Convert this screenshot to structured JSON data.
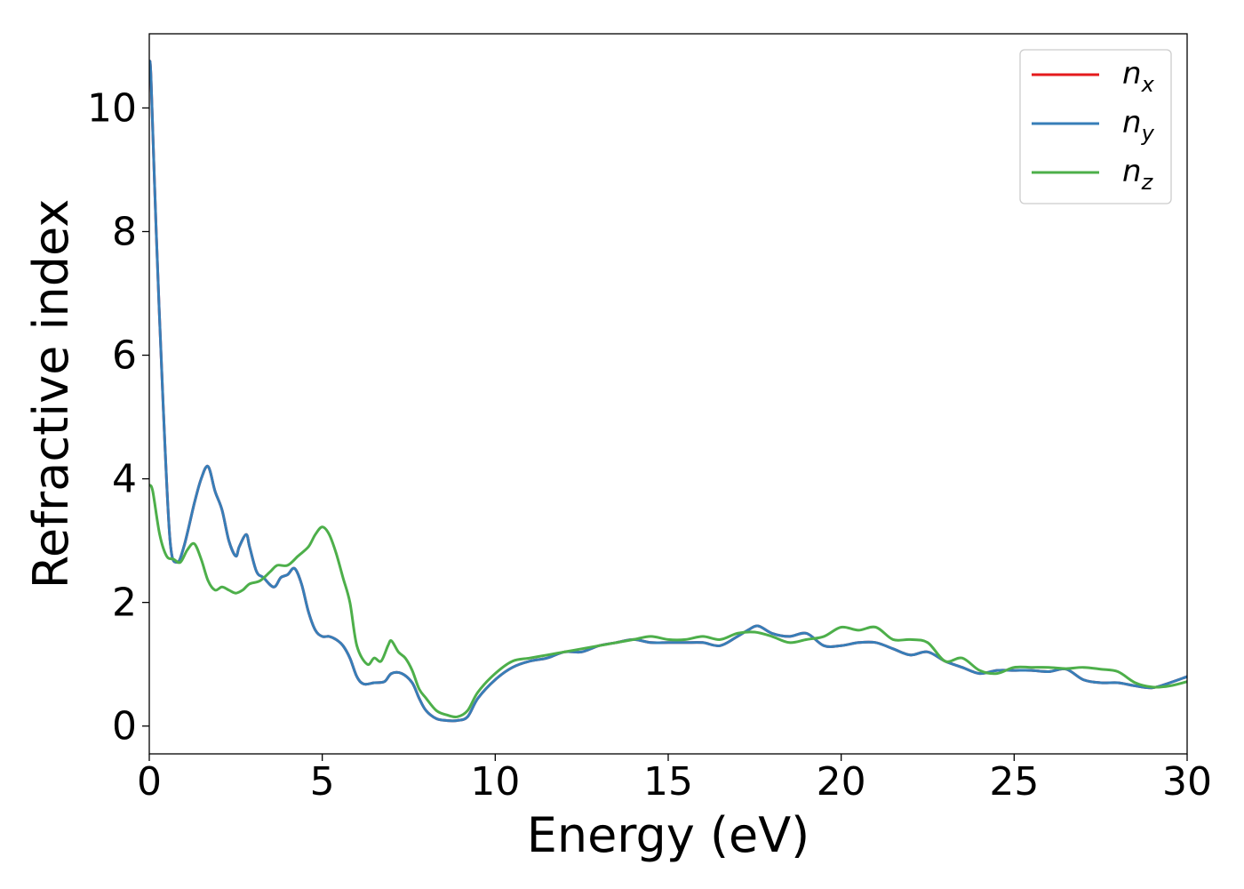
{
  "chart_data": {
    "type": "line",
    "xlabel": "Energy (eV)",
    "ylabel": "Refractive index",
    "xlim": [
      0,
      30
    ],
    "ylim": [
      -0.45,
      11.2
    ],
    "xticks": [
      0,
      5,
      10,
      15,
      20,
      25,
      30
    ],
    "yticks": [
      0,
      2,
      4,
      6,
      8,
      10
    ],
    "grid": false,
    "legend_position": "top-right",
    "series": [
      {
        "name": "n_x",
        "label_base": "n",
        "label_sub": "x",
        "color": "#e41a1c",
        "x": [
          0,
          0.05,
          0.2,
          0.4,
          0.6,
          0.8,
          1.0,
          1.3,
          1.5,
          1.7,
          1.9,
          2.1,
          2.3,
          2.5,
          2.6,
          2.8,
          2.9,
          3.1,
          3.3,
          3.6,
          3.8,
          4.0,
          4.2,
          4.4,
          4.6,
          4.8,
          5.0,
          5.2,
          5.4,
          5.6,
          5.8,
          6.0,
          6.2,
          6.5,
          6.8,
          7.0,
          7.3,
          7.6,
          7.8,
          8.0,
          8.3,
          8.6,
          8.9,
          9.2,
          9.5,
          10.0,
          10.5,
          11.0,
          11.5,
          12.0,
          12.5,
          13.0,
          13.5,
          14.0,
          14.5,
          15.0,
          15.5,
          16.0,
          16.5,
          17.0,
          17.3,
          17.6,
          18.0,
          18.5,
          19.0,
          19.5,
          20.0,
          20.5,
          21.0,
          21.5,
          22.0,
          22.5,
          23.0,
          23.5,
          24.0,
          24.5,
          25.0,
          25.5,
          26.0,
          26.5,
          27.0,
          27.5,
          28.0,
          28.5,
          29.0,
          29.5,
          30.0
        ],
        "values": [
          10.7,
          10.5,
          8.0,
          5.2,
          3.0,
          2.65,
          2.9,
          3.6,
          4.0,
          4.2,
          3.8,
          3.5,
          3.0,
          2.75,
          2.9,
          3.1,
          2.9,
          2.5,
          2.4,
          2.25,
          2.4,
          2.45,
          2.55,
          2.3,
          1.85,
          1.55,
          1.45,
          1.45,
          1.4,
          1.3,
          1.1,
          0.8,
          0.68,
          0.7,
          0.72,
          0.85,
          0.85,
          0.7,
          0.45,
          0.25,
          0.12,
          0.09,
          0.09,
          0.15,
          0.45,
          0.75,
          0.95,
          1.05,
          1.1,
          1.2,
          1.2,
          1.3,
          1.35,
          1.4,
          1.35,
          1.35,
          1.35,
          1.35,
          1.3,
          1.45,
          1.55,
          1.62,
          1.5,
          1.45,
          1.5,
          1.3,
          1.3,
          1.35,
          1.35,
          1.25,
          1.15,
          1.2,
          1.05,
          0.95,
          0.85,
          0.9,
          0.9,
          0.9,
          0.88,
          0.92,
          0.75,
          0.7,
          0.7,
          0.65,
          0.62,
          0.7,
          0.8
        ]
      },
      {
        "name": "n_y",
        "label_base": "n",
        "label_sub": "y",
        "color": "#377eb8",
        "x": [
          0,
          0.05,
          0.2,
          0.4,
          0.6,
          0.8,
          1.0,
          1.3,
          1.5,
          1.7,
          1.9,
          2.1,
          2.3,
          2.5,
          2.6,
          2.8,
          2.9,
          3.1,
          3.3,
          3.6,
          3.8,
          4.0,
          4.2,
          4.4,
          4.6,
          4.8,
          5.0,
          5.2,
          5.4,
          5.6,
          5.8,
          6.0,
          6.2,
          6.5,
          6.8,
          7.0,
          7.3,
          7.6,
          7.8,
          8.0,
          8.3,
          8.6,
          8.9,
          9.2,
          9.5,
          10.0,
          10.5,
          11.0,
          11.5,
          12.0,
          12.5,
          13.0,
          13.5,
          14.0,
          14.5,
          15.0,
          15.5,
          16.0,
          16.5,
          17.0,
          17.3,
          17.6,
          18.0,
          18.5,
          19.0,
          19.5,
          20.0,
          20.5,
          21.0,
          21.5,
          22.0,
          22.5,
          23.0,
          23.5,
          24.0,
          24.5,
          25.0,
          25.5,
          26.0,
          26.5,
          27.0,
          27.5,
          28.0,
          28.5,
          29.0,
          29.5,
          30.0
        ],
        "values": [
          10.7,
          10.5,
          8.0,
          5.2,
          3.0,
          2.65,
          2.9,
          3.6,
          4.0,
          4.2,
          3.8,
          3.5,
          3.0,
          2.75,
          2.9,
          3.1,
          2.9,
          2.5,
          2.4,
          2.25,
          2.4,
          2.45,
          2.55,
          2.3,
          1.85,
          1.55,
          1.45,
          1.45,
          1.4,
          1.3,
          1.1,
          0.8,
          0.68,
          0.7,
          0.72,
          0.85,
          0.85,
          0.7,
          0.45,
          0.25,
          0.12,
          0.09,
          0.09,
          0.15,
          0.45,
          0.75,
          0.95,
          1.05,
          1.1,
          1.2,
          1.2,
          1.3,
          1.35,
          1.4,
          1.35,
          1.35,
          1.35,
          1.35,
          1.3,
          1.45,
          1.55,
          1.62,
          1.5,
          1.45,
          1.5,
          1.3,
          1.3,
          1.35,
          1.35,
          1.25,
          1.15,
          1.2,
          1.05,
          0.95,
          0.85,
          0.9,
          0.9,
          0.9,
          0.88,
          0.92,
          0.75,
          0.7,
          0.7,
          0.65,
          0.62,
          0.7,
          0.8
        ]
      },
      {
        "name": "n_z",
        "label_base": "n",
        "label_sub": "z",
        "color": "#4daf4a",
        "x": [
          0,
          0.1,
          0.3,
          0.5,
          0.7,
          0.9,
          1.1,
          1.3,
          1.5,
          1.7,
          1.9,
          2.1,
          2.3,
          2.5,
          2.7,
          2.9,
          3.2,
          3.5,
          3.7,
          4.0,
          4.3,
          4.6,
          4.8,
          5.0,
          5.2,
          5.4,
          5.6,
          5.8,
          6.0,
          6.3,
          6.5,
          6.7,
          6.9,
          7.0,
          7.2,
          7.4,
          7.6,
          7.8,
          8.0,
          8.3,
          8.6,
          8.9,
          9.2,
          9.5,
          10.0,
          10.5,
          11.0,
          11.5,
          12.0,
          12.5,
          13.0,
          13.5,
          14.0,
          14.5,
          15.0,
          15.5,
          16.0,
          16.5,
          17.0,
          17.5,
          18.0,
          18.5,
          19.0,
          19.5,
          20.0,
          20.5,
          21.0,
          21.5,
          22.0,
          22.5,
          23.0,
          23.5,
          24.0,
          24.5,
          25.0,
          25.5,
          26.0,
          26.5,
          27.0,
          27.5,
          28.0,
          28.5,
          29.0,
          29.5,
          30.0
        ],
        "values": [
          3.9,
          3.8,
          3.1,
          2.75,
          2.7,
          2.65,
          2.85,
          2.95,
          2.7,
          2.35,
          2.2,
          2.25,
          2.2,
          2.15,
          2.2,
          2.3,
          2.35,
          2.5,
          2.6,
          2.6,
          2.75,
          2.9,
          3.1,
          3.22,
          3.1,
          2.8,
          2.4,
          2.0,
          1.3,
          1.0,
          1.1,
          1.05,
          1.3,
          1.38,
          1.2,
          1.1,
          0.9,
          0.6,
          0.45,
          0.25,
          0.18,
          0.15,
          0.25,
          0.55,
          0.85,
          1.05,
          1.1,
          1.15,
          1.2,
          1.25,
          1.3,
          1.35,
          1.4,
          1.45,
          1.4,
          1.4,
          1.45,
          1.4,
          1.5,
          1.52,
          1.45,
          1.35,
          1.4,
          1.45,
          1.6,
          1.55,
          1.6,
          1.4,
          1.4,
          1.35,
          1.05,
          1.1,
          0.9,
          0.85,
          0.95,
          0.95,
          0.95,
          0.93,
          0.95,
          0.92,
          0.88,
          0.7,
          0.63,
          0.65,
          0.72
        ]
      }
    ]
  }
}
